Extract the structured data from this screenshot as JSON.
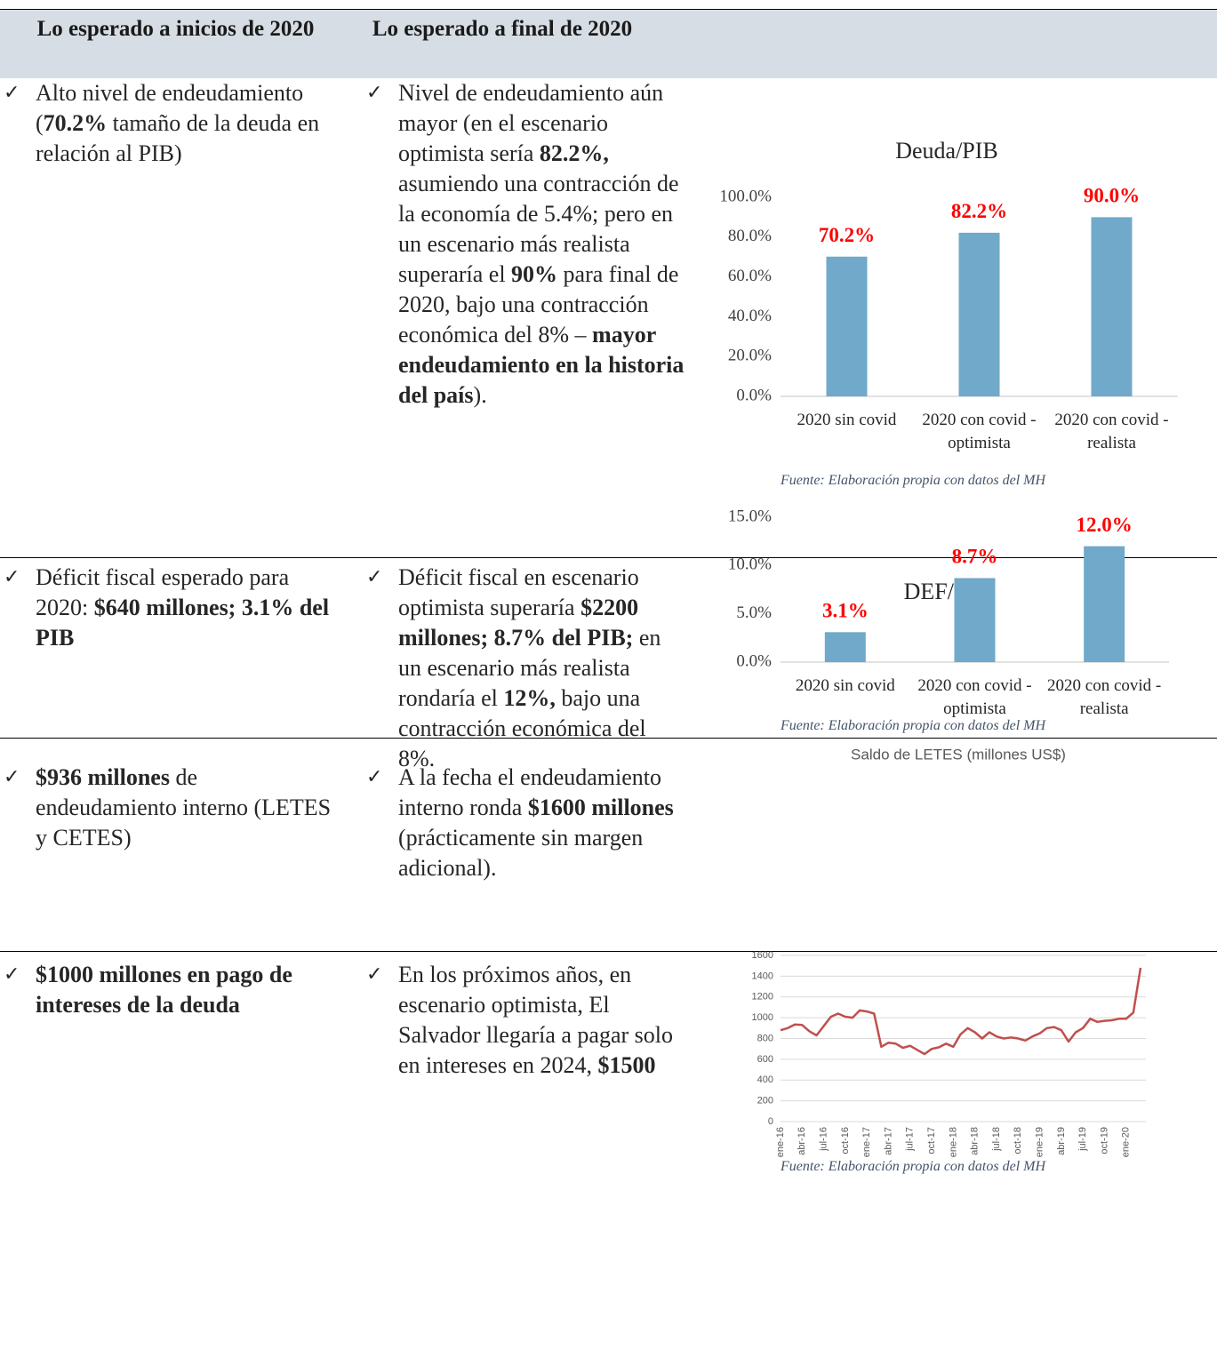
{
  "table": {
    "header": [
      "Lo esperado a inicios de 2020",
      "Lo esperado a final de 2020"
    ],
    "rows": [
      [
        [
          {
            "text": "Alto nivel de endeudamiento ("
          },
          {
            "text": "70.2%",
            "bold": true
          },
          {
            "text": " tamaño de la deuda en relación al PIB)"
          }
        ],
        [
          {
            "text": "Nivel de endeudamiento aún mayor (en el escenario optimista sería "
          },
          {
            "text": "82.2%,",
            "bold": true
          },
          {
            "text": " asumiendo una contracción de la economía de 5.4%; pero en un escenario más realista superaría el "
          },
          {
            "text": "90%",
            "bold": true
          },
          {
            "text": " para final de 2020, bajo una contracción económica del 8% – "
          },
          {
            "text": "mayor endeudamiento en la historia del país",
            "bold": true
          },
          {
            "text": ")."
          }
        ]
      ],
      [
        [
          {
            "text": "Déficit fiscal esperado para 2020: "
          },
          {
            "text": "$640 millones; 3.1% del PIB",
            "bold": true
          }
        ],
        [
          {
            "text": "Déficit fiscal en escenario optimista superaría "
          },
          {
            "text": "$2200 millones; 8.7% del PIB;",
            "bold": true
          },
          {
            "text": " en un escenario más realista rondaría el "
          },
          {
            "text": "12%,",
            "bold": true
          },
          {
            "text": " bajo una contracción económica del 8%."
          }
        ]
      ],
      [
        [
          {
            "text": "$936 millones",
            "bold": true
          },
          {
            "text": " de endeudamiento interno (LETES y CETES)"
          }
        ],
        [
          {
            "text": "A la fecha el endeudamiento interno ronda "
          },
          {
            "text": "$1600 millones",
            "bold": true
          },
          {
            "text": " (prácticamente sin margen adicional)."
          }
        ]
      ],
      [
        [
          {
            "text": "$1000 millones en pago de intereses de la deuda",
            "bold": true
          }
        ],
        [
          {
            "text": "En los próximos años, en escenario optimista, El Salvador llegaría a pagar solo en intereses en 2024, "
          },
          {
            "text": "$1500",
            "bold": true
          }
        ]
      ]
    ]
  },
  "chart_data": [
    {
      "type": "bar",
      "title": "Deuda/PIB",
      "categories": [
        "2020 sin covid",
        "2020 con covid - optimista",
        "2020 con covid - realista"
      ],
      "values": [
        70.2,
        82.2,
        90.0
      ],
      "value_labels": [
        "70.2%",
        "82.2%",
        "90.0%"
      ],
      "color": "#70a9c9",
      "label_color": "#ff0000",
      "ylim": [
        0,
        100
      ],
      "yticks": [
        {
          "value": 0,
          "label": "0.0%"
        },
        {
          "value": 20,
          "label": "20.0%"
        },
        {
          "value": 40,
          "label": "40.0%"
        },
        {
          "value": 60,
          "label": "60.0%"
        },
        {
          "value": 80,
          "label": "80.0%"
        },
        {
          "value": 100,
          "label": "100.0%"
        }
      ],
      "grid": false,
      "source": "Fuente: Elaboración propia con datos del MH"
    },
    {
      "type": "bar",
      "title": "DEF/PIB",
      "categories": [
        "2020 sin covid",
        "2020 con covid - optimista",
        "2020 con covid - realista"
      ],
      "values": [
        3.1,
        8.7,
        12.0
      ],
      "value_labels": [
        "3.1%",
        "8.7%",
        "12.0%"
      ],
      "color": "#70a9c9",
      "label_color": "#ff0000",
      "ylim": [
        0,
        15
      ],
      "yticks": [
        {
          "value": 0,
          "label": "0.0%"
        },
        {
          "value": 5,
          "label": "5.0%"
        },
        {
          "value": 10,
          "label": "10.0%"
        },
        {
          "value": 15,
          "label": "15.0%"
        }
      ],
      "grid": false,
      "source": "Fuente: Elaboración propia con datos del MH"
    },
    {
      "type": "line",
      "title": "Saldo de LETES (millones US$)",
      "categories": [
        "ene-16",
        null,
        null,
        "abr-16",
        null,
        null,
        "jul-16",
        null,
        null,
        "oct-16",
        null,
        null,
        "ene-17",
        null,
        null,
        "abr-17",
        null,
        null,
        "jul-17",
        null,
        null,
        "oct-17",
        null,
        null,
        "ene-18",
        null,
        null,
        "abr-18",
        null,
        null,
        "jul-18",
        null,
        null,
        "oct-18",
        null,
        null,
        "ene-19",
        null,
        null,
        "abr-19",
        null,
        null,
        "jul-19",
        null,
        null,
        "oct-19",
        null,
        null,
        "ene-20",
        null,
        null
      ],
      "values": [
        880,
        900,
        935,
        930,
        870,
        830,
        920,
        1010,
        1040,
        1010,
        1000,
        1070,
        1060,
        1040,
        720,
        760,
        750,
        710,
        730,
        690,
        650,
        700,
        715,
        750,
        720,
        840,
        900,
        860,
        800,
        860,
        820,
        800,
        810,
        800,
        780,
        820,
        850,
        900,
        910,
        880,
        770,
        860,
        900,
        990,
        960,
        970,
        975,
        990,
        990,
        1050,
        1480
      ],
      "color": "#c0504d",
      "ylim": [
        0,
        1600
      ],
      "yticks": [
        0,
        200,
        400,
        600,
        800,
        1000,
        1200,
        1400,
        1600
      ],
      "grid": true,
      "source": "Fuente: Elaboración propia con datos del MH"
    }
  ]
}
